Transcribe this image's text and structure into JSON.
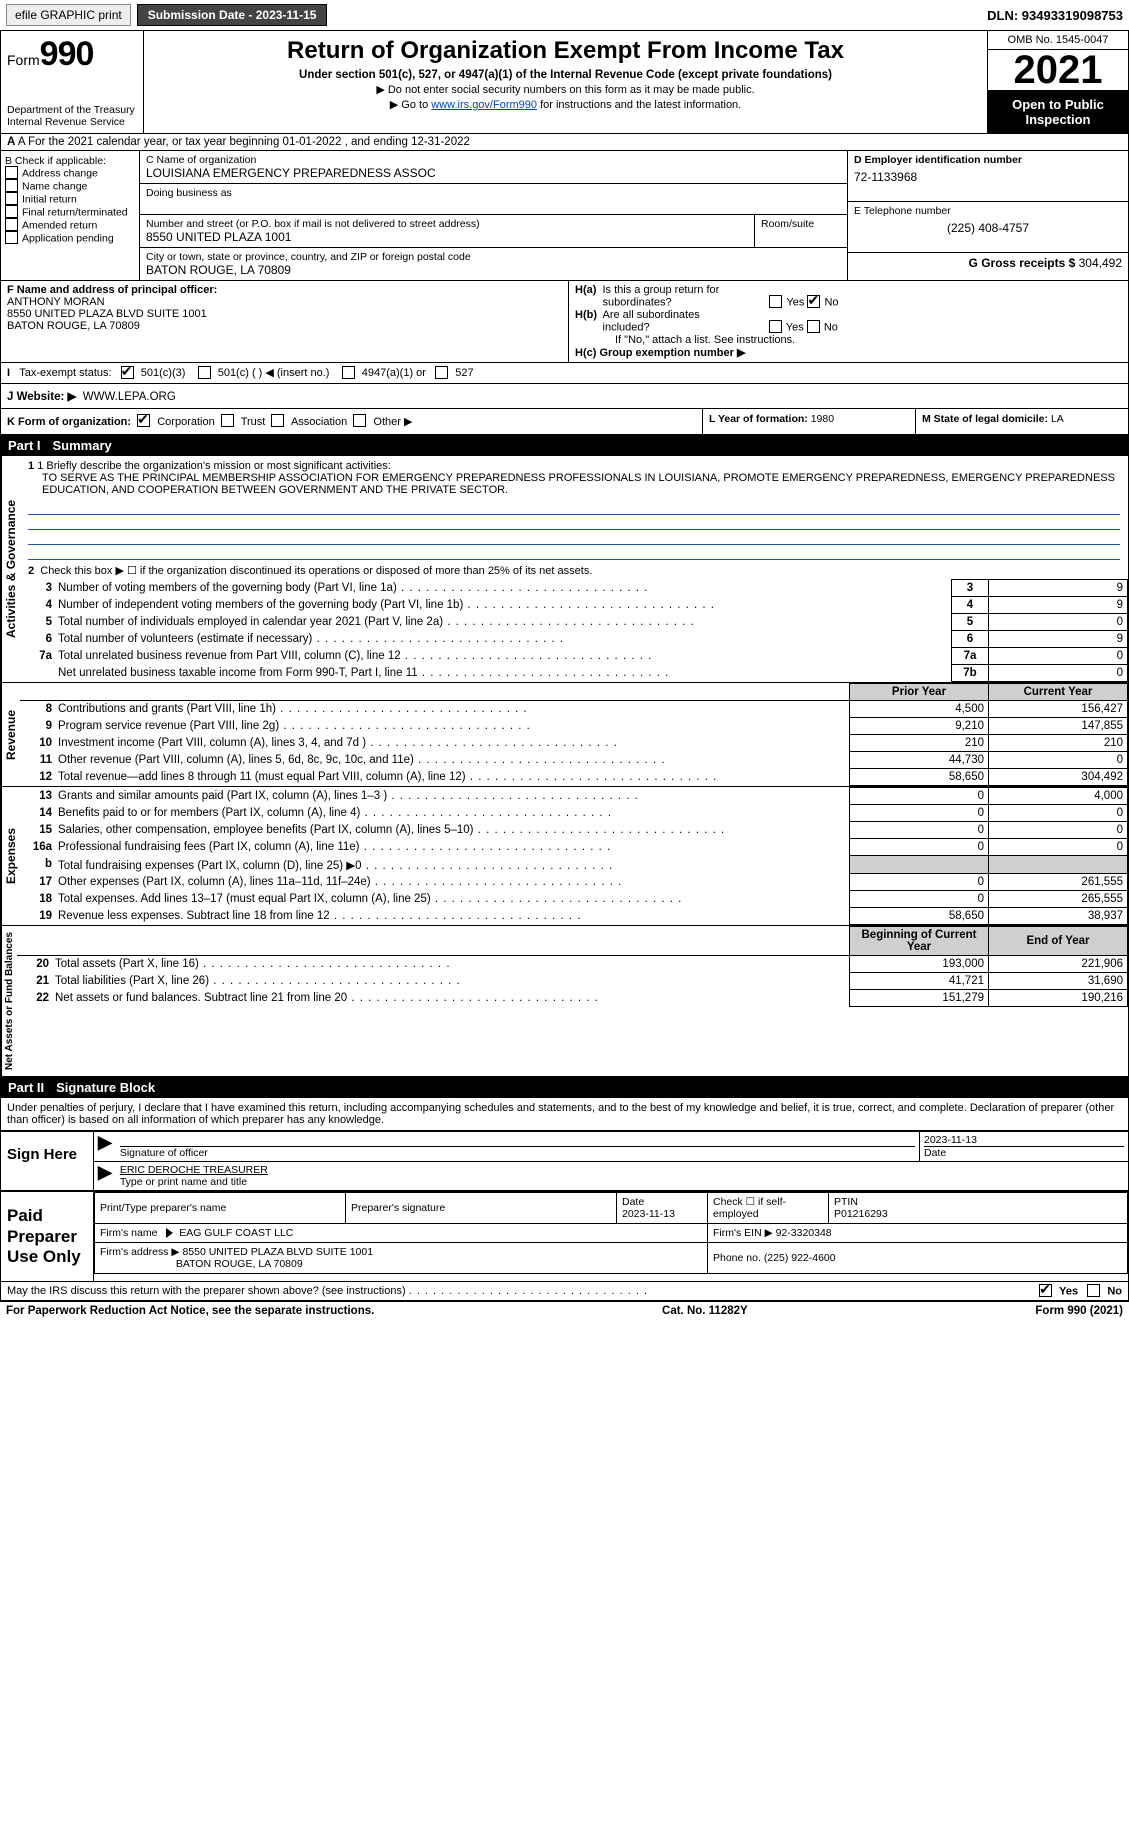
{
  "topbar": {
    "efile": "efile GRAPHIC print",
    "submission_label": "Submission Date - 2023-11-15",
    "dln_label": "DLN: 93493319098753"
  },
  "header": {
    "form_prefix": "Form",
    "form_num": "990",
    "dept1": "Department of the Treasury",
    "dept2": "Internal Revenue Service",
    "title": "Return of Organization Exempt From Income Tax",
    "sub1": "Under section 501(c), 527, or 4947(a)(1) of the Internal Revenue Code (except private foundations)",
    "sub2": "▶ Do not enter social security numbers on this form as it may be made public.",
    "sub3_pre": "▶ Go to ",
    "sub3_link": "www.irs.gov/Form990",
    "sub3_post": " for instructions and the latest information.",
    "omb": "OMB No. 1545-0047",
    "year": "2021",
    "open": "Open to Public Inspection"
  },
  "rowA": "A For the 2021 calendar year, or tax year beginning 01-01-2022   , and ending 12-31-2022",
  "boxB": {
    "label": "B Check if applicable:",
    "items": [
      "Address change",
      "Name change",
      "Initial return",
      "Final return/terminated",
      "Amended return",
      "Application pending"
    ]
  },
  "boxC": {
    "label": "C Name of organization",
    "name": "LOUISIANA EMERGENCY PREPAREDNESS ASSOC",
    "dba_label": "Doing business as",
    "street_label": "Number and street (or P.O. box if mail is not delivered to street address)",
    "room_label": "Room/suite",
    "street": "8550 UNITED PLAZA 1001",
    "city_label": "City or town, state or province, country, and ZIP or foreign postal code",
    "city": "BATON ROUGE, LA  70809"
  },
  "boxD": {
    "label": "D Employer identification number",
    "value": "72-1133968"
  },
  "boxE": {
    "label": "E Telephone number",
    "value": "(225) 408-4757"
  },
  "boxG": {
    "label": "G Gross receipts $",
    "value": "304,492"
  },
  "boxF": {
    "label": "F  Name and address of principal officer:",
    "line1": "ANTHONY MORAN",
    "line2": "8550 UNITED PLAZA BLVD SUITE 1001",
    "line3": "BATON ROUGE, LA  70809"
  },
  "boxH": {
    "a_label": "H(a)  Is this a group return for subordinates?",
    "b_label": "H(b)  Are all subordinates included?",
    "b_note": "If \"No,\" attach a list. See instructions.",
    "c_label": "H(c)  Group exemption number ▶",
    "yes": "Yes",
    "no": "No"
  },
  "boxI": {
    "label": "I   Tax-exempt status:",
    "o1": "501(c)(3)",
    "o2": "501(c) (  ) ◀ (insert no.)",
    "o3": "4947(a)(1) or",
    "o4": "527"
  },
  "boxJ": {
    "label": "J   Website: ▶",
    "value": "WWW.LEPA.ORG"
  },
  "boxK": {
    "label": "K Form of organization:",
    "o1": "Corporation",
    "o2": "Trust",
    "o3": "Association",
    "o4": "Other ▶"
  },
  "boxL": {
    "label": "L Year of formation:",
    "value": "1980"
  },
  "boxM": {
    "label": "M State of legal domicile:",
    "value": "LA"
  },
  "part1": {
    "hdr_part": "Part I",
    "hdr_title": "Summary",
    "line1_label": "1 Briefly describe the organization's mission or most significant activities:",
    "mission": "TO SERVE AS THE PRINCIPAL MEMBERSHIP ASSOCIATION FOR EMERGENCY PREPAREDNESS PROFESSIONALS IN LOUISIANA, PROMOTE EMERGENCY PREPAREDNESS, EMERGENCY PREPAREDNESS EDUCATION, AND COOPERATION BETWEEN GOVERNMENT AND THE PRIVATE SECTOR.",
    "line2": "Check this box ▶ ☐  if the organization discontinued its operations or disposed of more than 25% of its net assets.",
    "sidelabels": {
      "gov": "Activities & Governance",
      "rev": "Revenue",
      "exp": "Expenses",
      "net": "Net Assets or Fund Balances"
    },
    "gov_rows": [
      {
        "n": "3",
        "t": "Number of voting members of the governing body (Part VI, line 1a)",
        "idx": "3",
        "v": "9"
      },
      {
        "n": "4",
        "t": "Number of independent voting members of the governing body (Part VI, line 1b)",
        "idx": "4",
        "v": "9"
      },
      {
        "n": "5",
        "t": "Total number of individuals employed in calendar year 2021 (Part V, line 2a)",
        "idx": "5",
        "v": "0"
      },
      {
        "n": "6",
        "t": "Total number of volunteers (estimate if necessary)",
        "idx": "6",
        "v": "9"
      },
      {
        "n": "7a",
        "t": "Total unrelated business revenue from Part VIII, column (C), line 12",
        "idx": "7a",
        "v": "0"
      },
      {
        "n": "",
        "t": "Net unrelated business taxable income from Form 990-T, Part I, line 11",
        "idx": "7b",
        "v": "0"
      }
    ],
    "prior": "Prior Year",
    "current": "Current Year",
    "rev_rows": [
      {
        "n": "8",
        "t": "Contributions and grants (Part VIII, line 1h)",
        "p": "4,500",
        "c": "156,427"
      },
      {
        "n": "9",
        "t": "Program service revenue (Part VIII, line 2g)",
        "p": "9,210",
        "c": "147,855"
      },
      {
        "n": "10",
        "t": "Investment income (Part VIII, column (A), lines 3, 4, and 7d )",
        "p": "210",
        "c": "210"
      },
      {
        "n": "11",
        "t": "Other revenue (Part VIII, column (A), lines 5, 6d, 8c, 9c, 10c, and 11e)",
        "p": "44,730",
        "c": "0"
      },
      {
        "n": "12",
        "t": "Total revenue—add lines 8 through 11 (must equal Part VIII, column (A), line 12)",
        "p": "58,650",
        "c": "304,492"
      }
    ],
    "exp_rows": [
      {
        "n": "13",
        "t": "Grants and similar amounts paid (Part IX, column (A), lines 1–3 )",
        "p": "0",
        "c": "4,000"
      },
      {
        "n": "14",
        "t": "Benefits paid to or for members (Part IX, column (A), line 4)",
        "p": "0",
        "c": "0"
      },
      {
        "n": "15",
        "t": "Salaries, other compensation, employee benefits (Part IX, column (A), lines 5–10)",
        "p": "0",
        "c": "0"
      },
      {
        "n": "16a",
        "t": "Professional fundraising fees (Part IX, column (A), line 11e)",
        "p": "0",
        "c": "0"
      },
      {
        "n": "b",
        "t": "Total fundraising expenses (Part IX, column (D), line 25) ▶0",
        "p": "",
        "c": "",
        "grey": true
      },
      {
        "n": "17",
        "t": "Other expenses (Part IX, column (A), lines 11a–11d, 11f–24e)",
        "p": "0",
        "c": "261,555"
      },
      {
        "n": "18",
        "t": "Total expenses. Add lines 13–17 (must equal Part IX, column (A), line 25)",
        "p": "0",
        "c": "265,555"
      },
      {
        "n": "19",
        "t": "Revenue less expenses. Subtract line 18 from line 12",
        "p": "58,650",
        "c": "38,937"
      }
    ],
    "begin": "Beginning of Current Year",
    "end": "End of Year",
    "net_rows": [
      {
        "n": "20",
        "t": "Total assets (Part X, line 16)",
        "p": "193,000",
        "c": "221,906"
      },
      {
        "n": "21",
        "t": "Total liabilities (Part X, line 26)",
        "p": "41,721",
        "c": "31,690"
      },
      {
        "n": "22",
        "t": "Net assets or fund balances. Subtract line 21 from line 20",
        "p": "151,279",
        "c": "190,216"
      }
    ]
  },
  "part2": {
    "hdr_part": "Part II",
    "hdr_title": "Signature Block",
    "penalty": "Under penalties of perjury, I declare that I have examined this return, including accompanying schedules and statements, and to the best of my knowledge and belief, it is true, correct, and complete. Declaration of preparer (other than officer) is based on all information of which preparer has any knowledge.",
    "sign_here": "Sign Here",
    "sig_officer": "Signature of officer",
    "sig_date_lbl": "Date",
    "sig_date": "2023-11-13",
    "sig_name": "ERIC DEROCHE TREASURER",
    "sig_name_lbl": "Type or print name and title",
    "paid": "Paid Preparer Use Only",
    "p_name_lbl": "Print/Type preparer's name",
    "p_sig_lbl": "Preparer's signature",
    "p_date_lbl": "Date",
    "p_date": "2023-11-13",
    "p_self": "Check ☐ if self-employed",
    "ptin_lbl": "PTIN",
    "ptin": "P01216293",
    "firm_name_lbl": "Firm's name",
    "firm_name": "EAG GULF COAST LLC",
    "firm_ein_lbl": "Firm's EIN ▶",
    "firm_ein": "92-3320348",
    "firm_addr_lbl": "Firm's address ▶",
    "firm_addr1": "8550 UNITED PLAZA BLVD SUITE 1001",
    "firm_addr2": "BATON ROUGE, LA  70809",
    "phone_lbl": "Phone no.",
    "phone": "(225) 922-4600",
    "may": "May the IRS discuss this return with the preparer shown above? (see instructions)",
    "yes": "Yes",
    "no": "No"
  },
  "footer": {
    "left": "For Paperwork Reduction Act Notice, see the separate instructions.",
    "mid": "Cat. No. 11282Y",
    "right": "Form 990 (2021)"
  }
}
